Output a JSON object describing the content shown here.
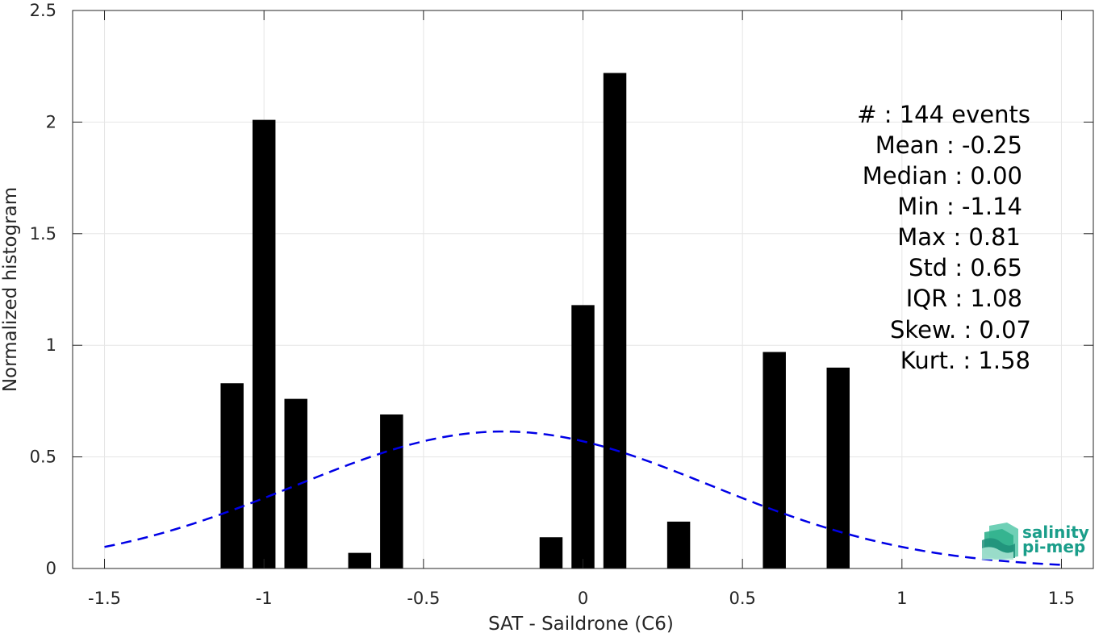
{
  "chart_data": {
    "type": "bar",
    "xlabel": "SAT - Saildrone (C6)",
    "ylabel": "Normalized histogram",
    "xlim": [
      -1.6,
      1.6
    ],
    "ylim": [
      0,
      2.5
    ],
    "xticks": [
      -1.5,
      -1,
      -0.5,
      0,
      0.5,
      1,
      1.5
    ],
    "xtick_labels": [
      "-1.5",
      "-1",
      "-0.5",
      "0",
      "0.5",
      "1",
      "1.5"
    ],
    "yticks": [
      0,
      0.5,
      1,
      1.5,
      2,
      2.5
    ],
    "ytick_labels": [
      "0",
      "0.5",
      "1",
      "1.5",
      "2",
      "2.5"
    ],
    "grid": true,
    "bar_color": "#000000",
    "bin_width": 0.1,
    "bars": [
      {
        "x": -1.1,
        "value": 0.83
      },
      {
        "x": -1.0,
        "value": 2.01
      },
      {
        "x": -0.9,
        "value": 0.76
      },
      {
        "x": -0.7,
        "value": 0.07
      },
      {
        "x": -0.6,
        "value": 0.69
      },
      {
        "x": -0.1,
        "value": 0.14
      },
      {
        "x": 0.0,
        "value": 1.18
      },
      {
        "x": 0.1,
        "value": 2.22
      },
      {
        "x": 0.3,
        "value": 0.21
      },
      {
        "x": 0.6,
        "value": 0.97
      },
      {
        "x": 0.8,
        "value": 0.9
      }
    ],
    "fit_curve": {
      "type": "gaussian",
      "style": "dashed",
      "color": "#0000e6",
      "mean": -0.25,
      "std": 0.65,
      "x_range": [
        -1.5,
        1.5
      ]
    }
  },
  "stats": {
    "lines": [
      "#  : 144 events",
      "Mean : -0.25",
      "Median : 0.00",
      "Min : -1.14",
      "Max : 0.81",
      "Std : 0.65",
      "IQR : 1.08",
      "Skew. : 0.07",
      "Kurt. : 1.58"
    ]
  },
  "logo": {
    "line1": "salinity",
    "line2": "pi-mep"
  }
}
